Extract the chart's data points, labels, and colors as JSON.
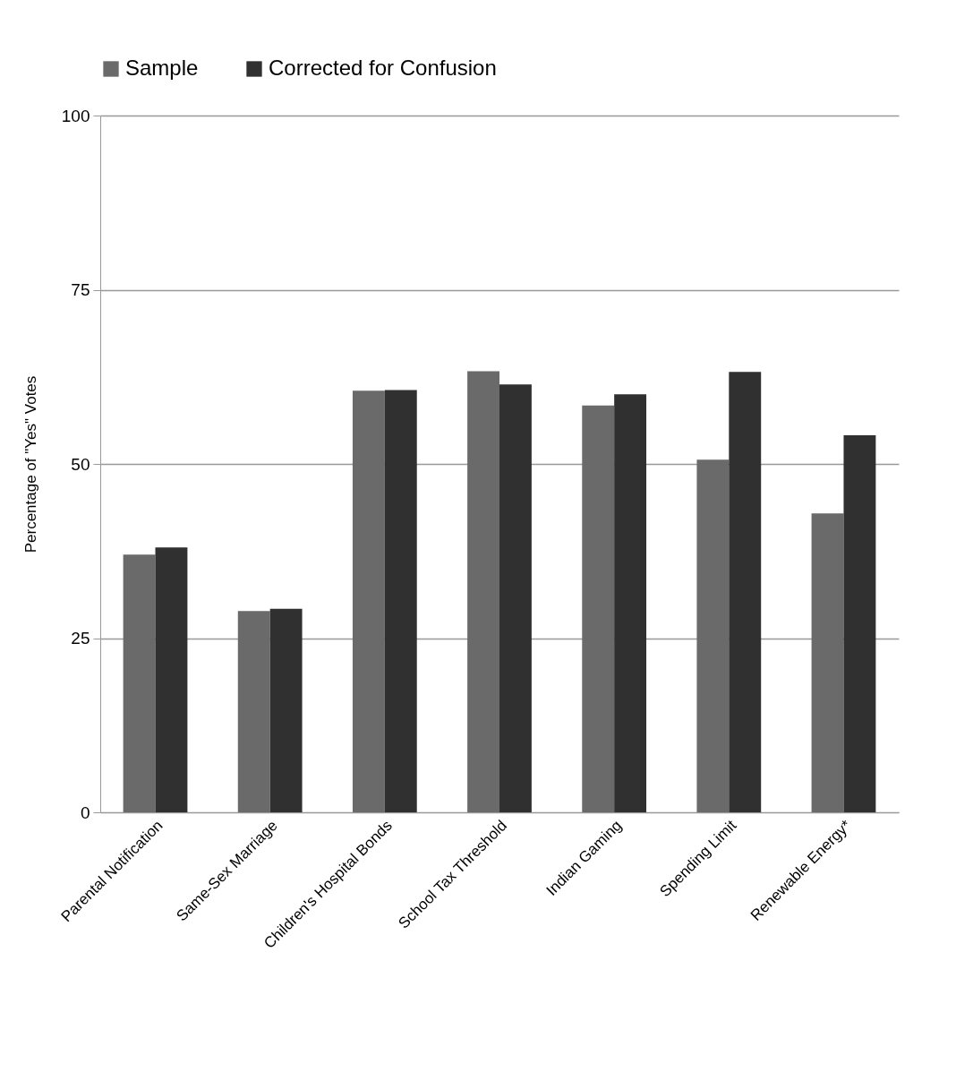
{
  "chart_data": {
    "type": "bar",
    "categories": [
      "Parental Notification",
      "Same-Sex Marriage",
      "Children's Hospital Bonds",
      "School Tax Threshold",
      "Indian Gaming",
      "Spending Limit",
      "Renewable Energy*"
    ],
    "ylabel": "Percentage of \"Yes\" Votes",
    "series": [
      {
        "name": "Sample",
        "color": "#6a6a6a",
        "values": [
          37.0,
          28.9,
          60.5,
          63.3,
          58.4,
          50.6,
          42.9
        ]
      },
      {
        "name": "Corrected for Confusion",
        "color": "#303030",
        "values": [
          38.0,
          29.2,
          60.6,
          61.4,
          60.0,
          63.2,
          54.1
        ]
      }
    ],
    "ylim": [
      0,
      100
    ],
    "yticks": [
      0,
      25,
      50,
      75,
      100
    ],
    "grid": "y",
    "legend": "top"
  }
}
